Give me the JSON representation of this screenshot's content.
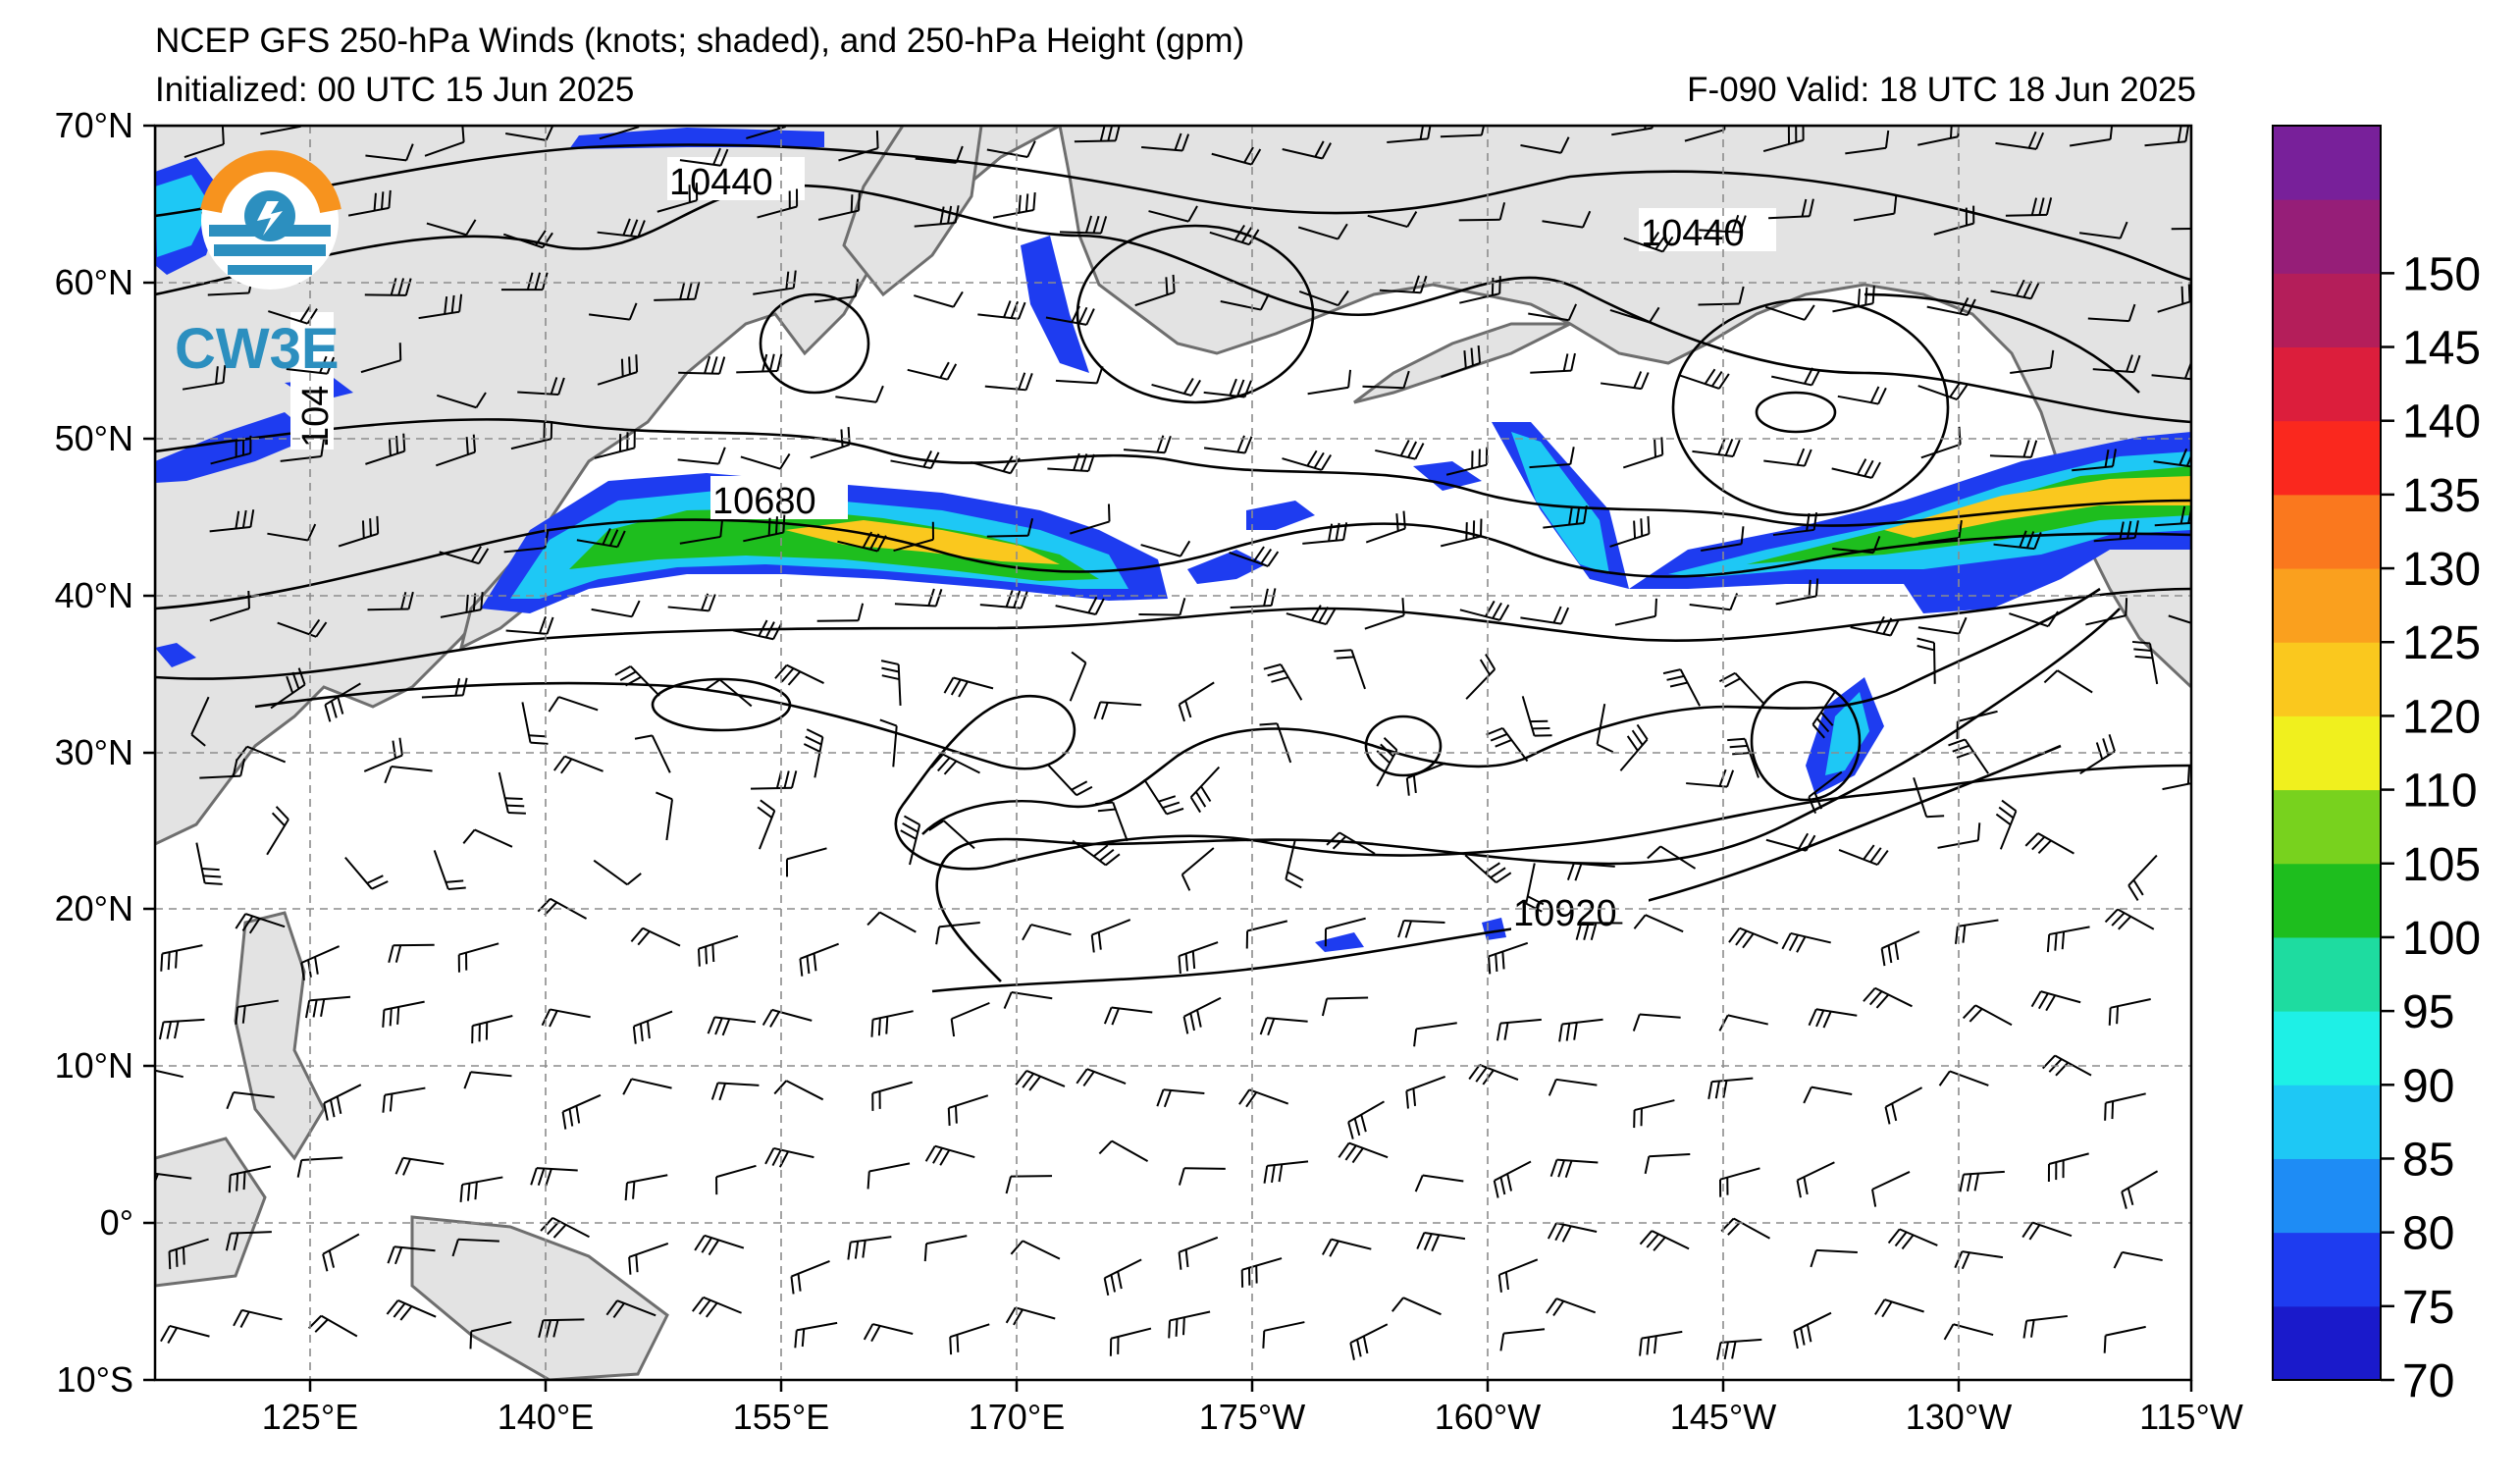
{
  "header": {
    "title": "NCEP GFS 250-hPa Winds (knots; shaded), and 250-hPa Height (gpm)",
    "init": "Initialized: 00 UTC 15 Jun 2025",
    "valid": "F-090  Valid: 18 UTC 18 Jun 2025"
  },
  "logo": {
    "text": "CW3E"
  },
  "axes": {
    "lat_labels": [
      "70°N",
      "60°N",
      "50°N",
      "40°N",
      "30°N",
      "20°N",
      "10°N",
      "0°",
      "10°S"
    ],
    "lon_labels": [
      "125°E",
      "140°E",
      "155°E",
      "170°E",
      "175°W",
      "160°W",
      "145°W",
      "130°W",
      "115°W"
    ]
  },
  "contour_labels": [
    "10440",
    "10440",
    "104",
    "10680",
    "10920"
  ],
  "colorbar": {
    "labels": [
      "70",
      "75",
      "80",
      "85",
      "90",
      "95",
      "100",
      "105",
      "110",
      "120",
      "125",
      "130",
      "135",
      "140",
      "145",
      "150"
    ],
    "colors": [
      "#1a1acb",
      "#1e3cf0",
      "#1e8cf5",
      "#1ec8f5",
      "#1ef0e6",
      "#1edca0",
      "#1ebe1e",
      "#78d21e",
      "#f0f01e",
      "#fac81e",
      "#faa01e",
      "#fa781e",
      "#fa281e",
      "#dc1e3c",
      "#b41e5a",
      "#961e78",
      "#78209a"
    ]
  }
}
